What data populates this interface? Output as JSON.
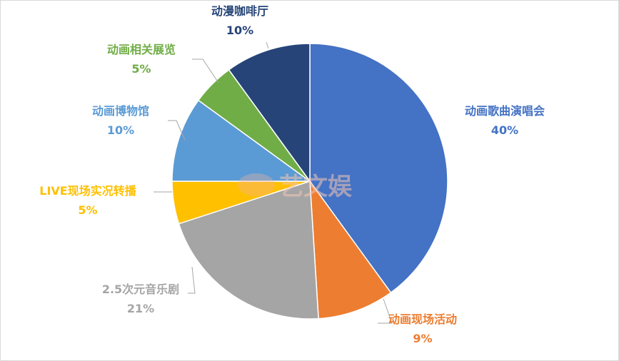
{
  "chart_data": {
    "type": "pie",
    "title": "",
    "start_angle_deg": 0,
    "direction": "clockwise",
    "slices": [
      {
        "label": "动画歌曲演唱会",
        "value": 40,
        "display": "40%",
        "color": "#4472C4"
      },
      {
        "label": "动画现场活动",
        "value": 9,
        "display": "9%",
        "color": "#ED7D31"
      },
      {
        "label": "2.5次元音乐剧",
        "value": 21,
        "display": "21%",
        "color": "#A5A5A5"
      },
      {
        "label": "LIVE现场实况转播",
        "value": 5,
        "display": "5%",
        "color": "#FFC000"
      },
      {
        "label": "动画博物馆",
        "value": 10,
        "display": "10%",
        "color": "#5B9BD5"
      },
      {
        "label": "动画相关展览",
        "value": 5,
        "display": "5%",
        "color": "#70AD47"
      },
      {
        "label": "动漫咖啡厅",
        "value": 10,
        "display": "10%",
        "color": "#264478"
      }
    ],
    "legend": "none"
  },
  "watermark": {
    "text": "艺文娱"
  }
}
